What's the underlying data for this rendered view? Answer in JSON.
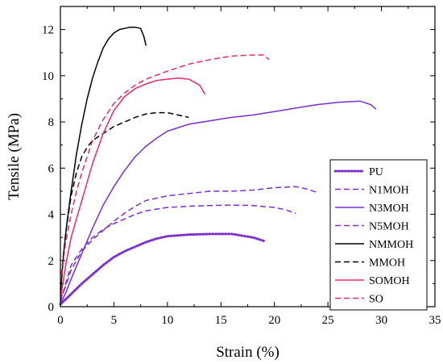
{
  "chart_data": {
    "type": "line",
    "xlabel": "Strain (%)",
    "ylabel": "Tensile (MPa)",
    "xlim": [
      0,
      35
    ],
    "ylim": [
      0,
      13
    ],
    "xticks": [
      "0",
      "5",
      "10",
      "15",
      "20",
      "25",
      "30",
      "35"
    ],
    "yticks": [
      "0",
      "2",
      "4",
      "6",
      "8",
      "10",
      "12"
    ],
    "legend_position": "bottom-right",
    "grid": false,
    "series": [
      {
        "name": "PU",
        "color": "#7b2fd0",
        "style": "dotted",
        "x": [
          0,
          1,
          2,
          3,
          4,
          5,
          6,
          7,
          8,
          9,
          10,
          12,
          14,
          16,
          18,
          19
        ],
        "y": [
          0.1,
          0.55,
          1.0,
          1.4,
          1.8,
          2.15,
          2.4,
          2.6,
          2.8,
          2.95,
          3.05,
          3.12,
          3.15,
          3.15,
          3.0,
          2.85
        ]
      },
      {
        "name": "N1MOH",
        "color": "#7b2fd0",
        "style": "dashed",
        "x": [
          0,
          0.5,
          1,
          2,
          3,
          4,
          5,
          6,
          7,
          8,
          10,
          12,
          14,
          16,
          18,
          20,
          21,
          22
        ],
        "y": [
          0.2,
          1.0,
          1.8,
          2.5,
          3.0,
          3.35,
          3.6,
          3.8,
          4.0,
          4.15,
          4.3,
          4.35,
          4.38,
          4.4,
          4.38,
          4.3,
          4.2,
          4.05
        ]
      },
      {
        "name": "N3MOH",
        "color": "#7b2fd0",
        "style": "solid",
        "x": [
          0,
          0.5,
          1,
          2,
          3,
          4,
          5,
          6,
          7,
          8,
          9,
          10,
          12,
          14,
          16,
          18,
          20,
          22,
          24,
          26,
          28,
          29,
          29.5
        ],
        "y": [
          0.1,
          0.6,
          1.2,
          2.3,
          3.4,
          4.4,
          5.2,
          5.9,
          6.5,
          6.95,
          7.3,
          7.6,
          7.9,
          8.05,
          8.2,
          8.3,
          8.45,
          8.6,
          8.75,
          8.85,
          8.9,
          8.75,
          8.55
        ]
      },
      {
        "name": "N5MOH",
        "color": "#7b2fd0",
        "style": "dashed",
        "x": [
          0,
          0.5,
          1,
          2,
          3,
          4,
          5,
          6,
          7,
          8,
          10,
          12,
          14,
          16,
          18,
          20,
          22,
          23,
          24
        ],
        "y": [
          0.3,
          0.9,
          1.6,
          2.4,
          2.9,
          3.3,
          3.7,
          4.05,
          4.35,
          4.6,
          4.8,
          4.9,
          5.0,
          5.0,
          5.05,
          5.15,
          5.2,
          5.1,
          4.95
        ]
      },
      {
        "name": "NMMOH",
        "color": "#000000",
        "style": "solid",
        "x": [
          0,
          0.3,
          0.6,
          1,
          1.5,
          2,
          2.5,
          3,
          3.5,
          4,
          4.5,
          5,
          5.5,
          6,
          6.5,
          7,
          7.5,
          7.8,
          8.0
        ],
        "y": [
          0.5,
          2.3,
          3.6,
          5.0,
          6.6,
          7.9,
          9.0,
          9.9,
          10.6,
          11.2,
          11.6,
          11.85,
          12.0,
          12.05,
          12.1,
          12.1,
          12.05,
          11.7,
          11.3
        ]
      },
      {
        "name": "MMOH",
        "color": "#000000",
        "style": "dashed",
        "x": [
          0,
          0.5,
          1,
          1.5,
          2,
          2.5,
          3,
          4,
          5,
          6,
          7,
          8,
          9,
          10,
          11,
          12
        ],
        "y": [
          1.0,
          3.2,
          4.8,
          5.8,
          6.5,
          6.9,
          7.2,
          7.5,
          7.8,
          8.0,
          8.2,
          8.35,
          8.4,
          8.4,
          8.3,
          8.2
        ]
      },
      {
        "name": "SOMOH",
        "color": "#e8296e",
        "style": "solid",
        "x": [
          0,
          0.5,
          1,
          1.5,
          2,
          3,
          4,
          5,
          6,
          7,
          8,
          9,
          10,
          11,
          12,
          13,
          13.5
        ],
        "y": [
          0.3,
          1.8,
          3.0,
          3.8,
          4.6,
          6.2,
          7.5,
          8.5,
          9.1,
          9.45,
          9.65,
          9.8,
          9.85,
          9.9,
          9.85,
          9.6,
          9.2
        ]
      },
      {
        "name": "SO",
        "color": "#e8296e",
        "style": "dashed",
        "x": [
          0,
          0.5,
          1,
          1.5,
          2,
          3,
          4,
          5,
          6,
          7,
          8,
          10,
          12,
          14,
          16,
          18,
          19,
          19.5
        ],
        "y": [
          1.0,
          2.8,
          4.0,
          5.0,
          5.8,
          7.2,
          8.1,
          8.8,
          9.25,
          9.6,
          9.85,
          10.2,
          10.5,
          10.7,
          10.85,
          10.9,
          10.9,
          10.7
        ]
      }
    ]
  }
}
